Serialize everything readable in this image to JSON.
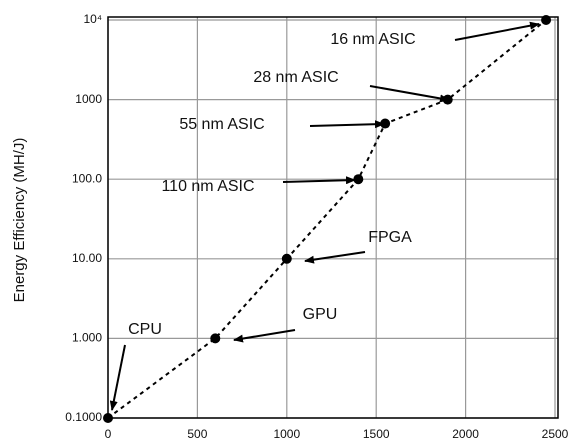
{
  "chart_data": {
    "type": "line",
    "ylabel": "Energy Efficiency (MH/J)",
    "x": [
      0,
      600,
      1000,
      1400,
      1550,
      1900,
      2450
    ],
    "values": [
      0.1,
      1,
      10,
      100,
      500,
      1000,
      10000
    ],
    "labels": [
      "CPU",
      "GPU",
      "FPGA",
      "110 nm ASIC",
      "55 nm ASIC",
      "28 nm ASIC",
      "16 nm ASIC"
    ],
    "color": "#000000",
    "xlim": [
      0,
      2500
    ],
    "xticks": [
      0,
      500,
      1000,
      1500,
      2000,
      2500
    ],
    "ylim": [
      0.1,
      10000
    ],
    "yticks": [
      {
        "value": 0.1,
        "label": "0.1000"
      },
      {
        "value": 1,
        "label": "1.000"
      },
      {
        "value": 10,
        "label": "10.00"
      },
      {
        "value": 100,
        "label": "100.0"
      },
      1000,
      {
        "value": 10000,
        "label": "10⁴"
      }
    ],
    "ylog": true,
    "grid": true,
    "line_style": "dashed"
  }
}
